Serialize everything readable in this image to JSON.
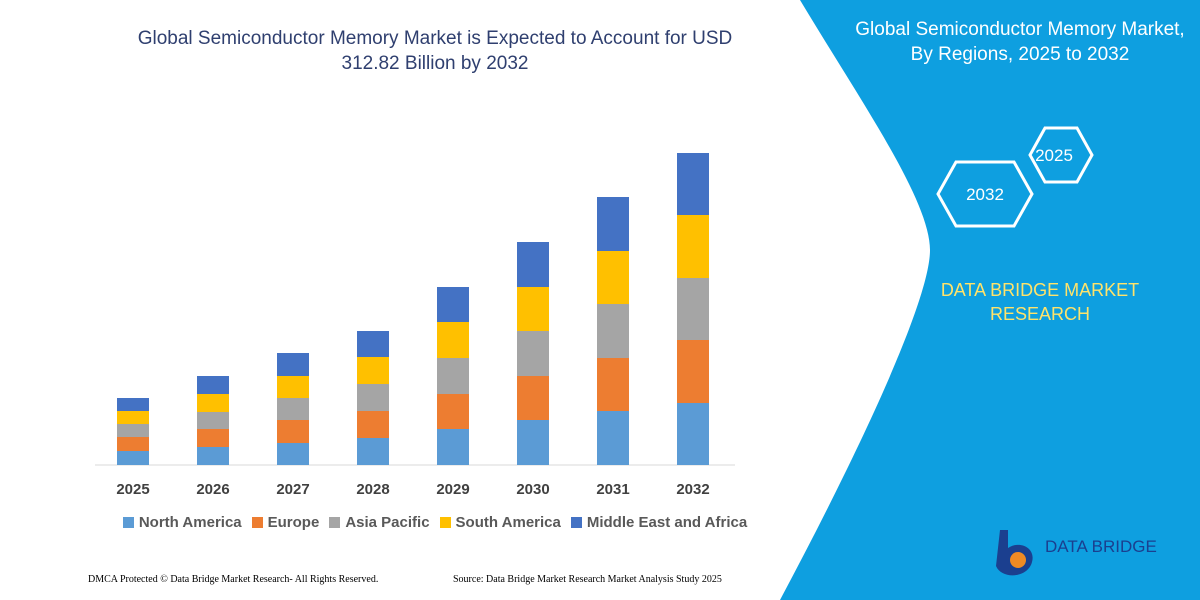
{
  "chart_data": {
    "type": "bar",
    "stacked": true,
    "title": "Global Semiconductor Memory Market is Expected to Account for USD 312.82 Billion by 2032",
    "categories": [
      "2025",
      "2026",
      "2027",
      "2028",
      "2029",
      "2030",
      "2031",
      "2032"
    ],
    "series": [
      {
        "name": "North America",
        "color": "#5b9bd5",
        "values": [
          14,
          18,
          22,
          27,
          36,
          45,
          54,
          62
        ]
      },
      {
        "name": "Europe",
        "color": "#ed7d31",
        "values": [
          14,
          18,
          23,
          27,
          35,
          44,
          53,
          63
        ]
      },
      {
        "name": "Asia Pacific",
        "color": "#a5a5a5",
        "values": [
          13,
          17,
          22,
          27,
          36,
          45,
          54,
          62
        ]
      },
      {
        "name": "South America",
        "color": "#ffc000",
        "values": [
          13,
          18,
          22,
          27,
          36,
          44,
          53,
          63
        ]
      },
      {
        "name": "Middle East and Africa",
        "color": "#4472c4",
        "values": [
          13,
          18,
          23,
          26,
          35,
          45,
          54,
          62
        ]
      }
    ]
  },
  "panel": {
    "title": "Global Semiconductor Memory Market, By Regions, 2025 to 2032",
    "hexagons": [
      "2025",
      "2032"
    ],
    "brand": "DATA BRIDGE MARKET RESEARCH",
    "logo": "DATA BRIDGE"
  },
  "footer": {
    "dmca": "DMCA Protected © Data Bridge Market Research- All Rights Reserved.",
    "source": "Source: Data Bridge Market Research Market Analysis Study 2025"
  }
}
